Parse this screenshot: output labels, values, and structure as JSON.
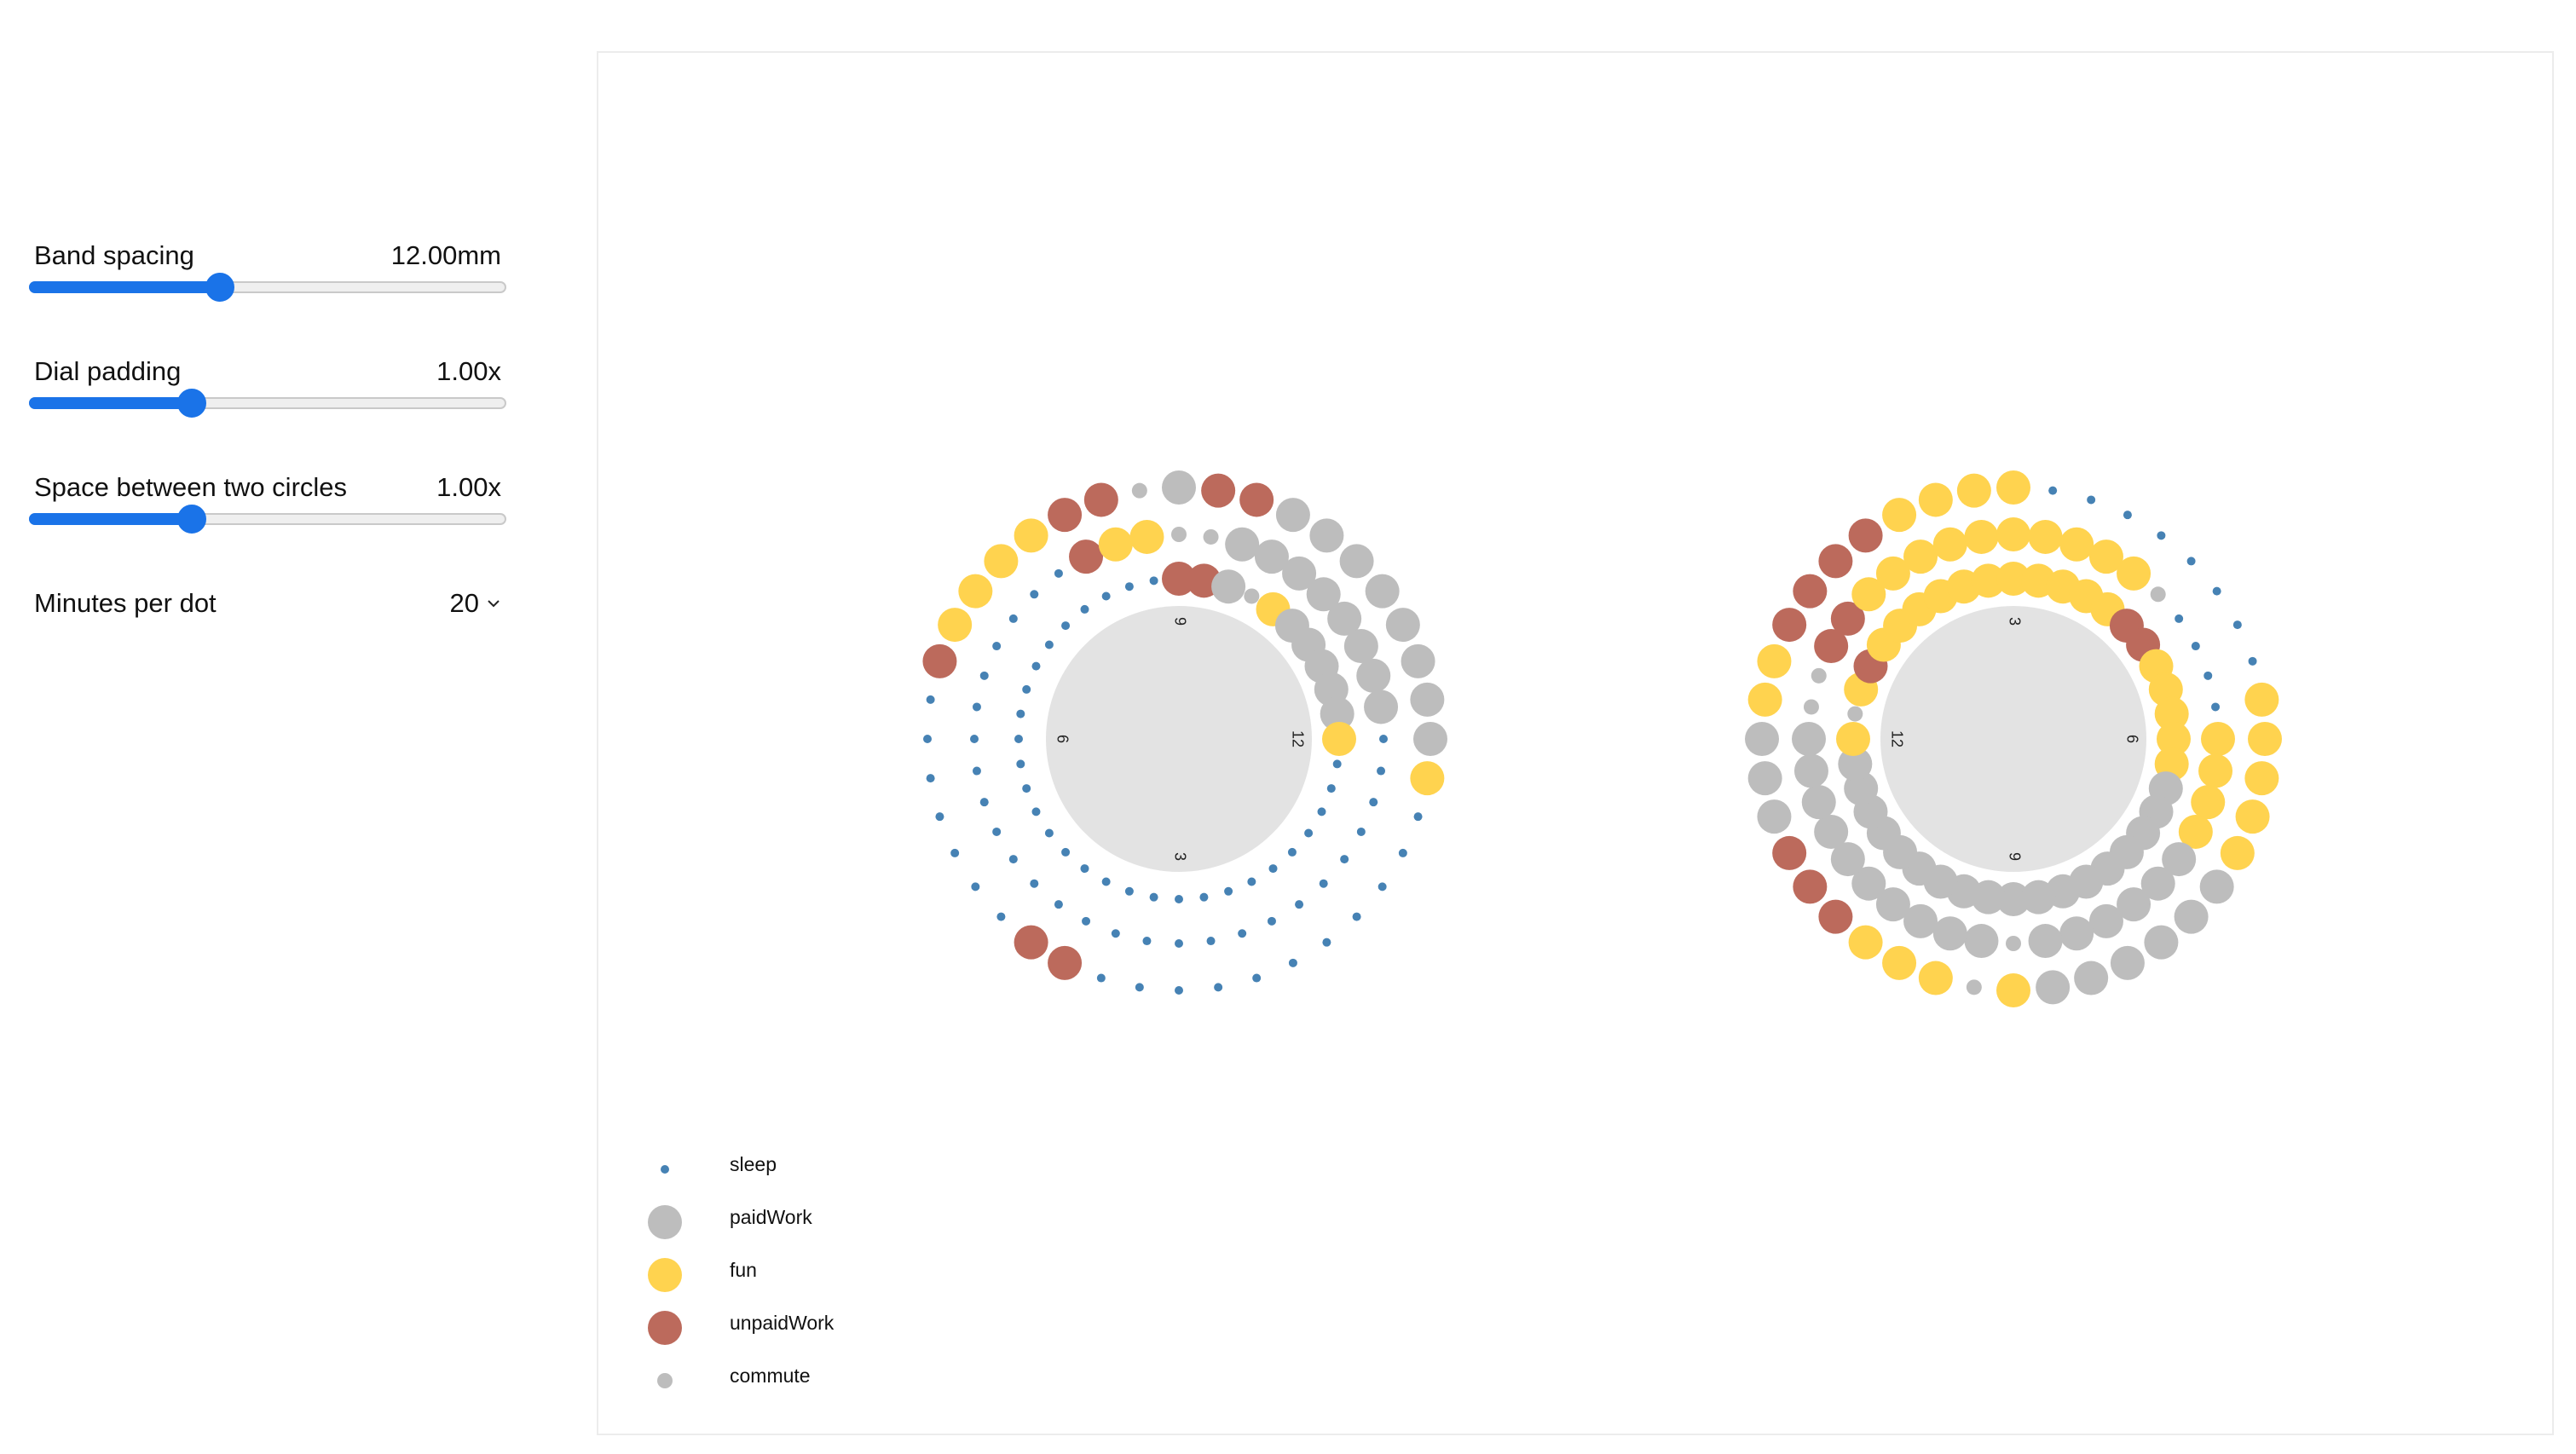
{
  "controls": {
    "band_spacing": {
      "label": "Band spacing",
      "value_text": "12.00mm",
      "fraction": 0.4
    },
    "dial_padding": {
      "label": "Dial padding",
      "value_text": "1.00x",
      "fraction": 0.34
    },
    "space_between": {
      "label": "Space between two circles",
      "value_text": "1.00x",
      "fraction": 0.34
    },
    "minutes_per_dot": {
      "label": "Minutes per dot",
      "value": "20"
    }
  },
  "colors": {
    "sleep": "#4682b4",
    "paidWork": "#bdbdbd",
    "fun": "#ffd34f",
    "unpaidWork": "#bc6a5c",
    "commute": "#bdbdbd",
    "dial": "#e3e3e3"
  },
  "legend": [
    "sleep",
    "paidWork",
    "fun",
    "unpaidWork",
    "commute"
  ],
  "dials": [
    {
      "labels": {
        "top": "9",
        "right": "12",
        "bottom": "3",
        "left": "6"
      }
    },
    {
      "labels": {
        "top": "3",
        "right": "6",
        "bottom": "9",
        "left": "12"
      }
    }
  ],
  "chart_data": {
    "type": "scatter",
    "series": [
      {
        "bands": [
          [
            "paidWork",
            "unpaidWork",
            "unpaidWork",
            "paidWork",
            "paidWork",
            "paidWork",
            "paidWork",
            "paidWork",
            "paidWork",
            "paidWork",
            "paidWork",
            "fun",
            "sleep",
            "sleep",
            "sleep",
            "sleep",
            "sleep",
            "sleep",
            "sleep",
            "sleep",
            "sleep",
            "sleep",
            "sleep",
            "unpaidWork",
            "unpaidWork",
            "sleep",
            "sleep",
            "sleep",
            "sleep",
            "sleep",
            "sleep",
            "sleep",
            "unpaidWork",
            "fun",
            "fun",
            "fun",
            "fun",
            "unpaidWork",
            "unpaidWork",
            "commute"
          ],
          [
            "commute",
            "commute",
            "paidWork",
            "paidWork",
            "paidWork",
            "paidWork",
            "paidWork",
            "paidWork",
            "paidWork",
            "paidWork",
            "sleep",
            "sleep",
            "sleep",
            "sleep",
            "sleep",
            "sleep",
            "sleep",
            "sleep",
            "sleep",
            "sleep",
            "sleep",
            "sleep",
            "sleep",
            "sleep",
            "sleep",
            "sleep",
            "sleep",
            "sleep",
            "sleep",
            "sleep",
            "sleep",
            "sleep",
            "sleep",
            "sleep",
            "sleep",
            "sleep",
            "sleep",
            "unpaidWork",
            "fun",
            "fun"
          ],
          [
            "unpaidWork",
            "unpaidWork",
            "paidWork",
            "commute",
            "fun",
            "paidWork",
            "paidWork",
            "paidWork",
            "paidWork",
            "paidWork",
            "fun",
            "sleep",
            "sleep",
            "sleep",
            "sleep",
            "sleep",
            "sleep",
            "sleep",
            "sleep",
            "sleep",
            "sleep",
            "sleep",
            "sleep",
            "sleep",
            "sleep",
            "sleep",
            "sleep",
            "sleep",
            "sleep",
            "sleep",
            "sleep",
            "sleep",
            "sleep",
            "sleep",
            "sleep",
            "sleep",
            "sleep",
            "sleep",
            "sleep",
            "sleep"
          ]
        ]
      },
      {
        "bands": [
          [
            "fun",
            "commute",
            "fun",
            "fun",
            "fun",
            "unpaidWork",
            "unpaidWork",
            "unpaidWork",
            "paidWork",
            "paidWork",
            "paidWork",
            "fun",
            "fun",
            "unpaidWork",
            "unpaidWork",
            "unpaidWork",
            "unpaidWork",
            "fun",
            "fun",
            "fun",
            "fun",
            "sleep",
            "sleep",
            "sleep",
            "sleep",
            "sleep",
            "sleep",
            "sleep",
            "sleep",
            "fun",
            "fun",
            "fun",
            "fun",
            "fun",
            "paidWork",
            "paidWork",
            "paidWork",
            "paidWork",
            "paidWork",
            "paidWork"
          ],
          [
            "commute",
            "paidWork",
            "paidWork",
            "paidWork",
            "paidWork",
            "paidWork",
            "paidWork",
            "paidWork",
            "paidWork",
            "paidWork",
            "paidWork",
            "commute",
            "commute",
            "unpaidWork",
            "unpaidWork",
            "fun",
            "fun",
            "fun",
            "fun",
            "fun",
            "fun",
            "fun",
            "fun",
            "fun",
            "fun",
            "commute",
            "sleep",
            "sleep",
            "sleep",
            "sleep",
            "fun",
            "fun",
            "fun",
            "fun",
            "paidWork",
            "paidWork",
            "paidWork",
            "paidWork",
            "paidWork",
            "paidWork"
          ],
          [
            "paidWork",
            "paidWork",
            "paidWork",
            "paidWork",
            "paidWork",
            "paidWork",
            "paidWork",
            "paidWork",
            "paidWork",
            "paidWork",
            "fun",
            "commute",
            "fun",
            "unpaidWork",
            "fun",
            "fun",
            "fun",
            "fun",
            "fun",
            "fun",
            "fun",
            "fun",
            "fun",
            "fun",
            "fun",
            "unpaidWork",
            "unpaidWork",
            "fun",
            "fun",
            "fun",
            "fun",
            "fun",
            "paidWork",
            "paidWork",
            "paidWork",
            "paidWork",
            "paidWork",
            "paidWork",
            "paidWork",
            "paidWork"
          ]
        ]
      }
    ]
  }
}
